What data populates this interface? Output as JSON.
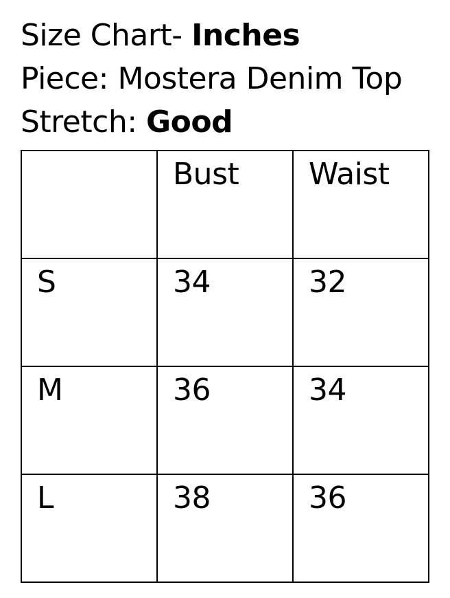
{
  "header": {
    "title_regular": "Size Chart- ",
    "title_bold": "Inches",
    "piece_label": "Piece: ",
    "piece_value": "Mostera Denim Top",
    "stretch_label": "Stretch: ",
    "stretch_value": "Good"
  },
  "chart_data": {
    "type": "table",
    "title": "Size Chart- Inches",
    "columns": [
      "",
      "Bust",
      "Waist"
    ],
    "rows": [
      [
        "S",
        "34",
        "32"
      ],
      [
        "M",
        "36",
        "34"
      ],
      [
        "L",
        "38",
        "36"
      ]
    ]
  },
  "colors": {
    "text": "#000000",
    "background": "#ffffff",
    "table_border": "#000000"
  }
}
